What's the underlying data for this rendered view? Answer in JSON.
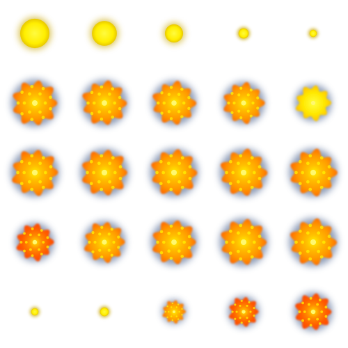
{
  "sprite_sheet": {
    "frames": [
      {
        "id": "r1c1",
        "style": "flash",
        "level": 1.0
      },
      {
        "id": "r1c2",
        "style": "flash",
        "level": 0.85
      },
      {
        "id": "r1c3",
        "style": "flash",
        "level": 0.62
      },
      {
        "id": "r1c4",
        "style": "flash",
        "level": 0.35
      },
      {
        "id": "r1c5",
        "style": "flash",
        "level": 0.25
      },
      {
        "id": "r2c1",
        "style": "burst",
        "level": 0.98
      },
      {
        "id": "r2c2",
        "style": "burst",
        "level": 0.96
      },
      {
        "id": "r2c3",
        "style": "burst",
        "level": 0.93
      },
      {
        "id": "r2c4",
        "style": "burst",
        "level": 0.88
      },
      {
        "id": "r2c5",
        "style": "glow",
        "level": 0.76
      },
      {
        "id": "r3c1",
        "style": "burst",
        "level": 1.0
      },
      {
        "id": "r3c2",
        "style": "burst",
        "level": 1.0
      },
      {
        "id": "r3c3",
        "style": "burst",
        "level": 1.0
      },
      {
        "id": "r3c4",
        "style": "burst",
        "level": 1.0
      },
      {
        "id": "r3c5",
        "style": "burst",
        "level": 1.0
      },
      {
        "id": "r4c1",
        "style": "burst-dark",
        "level": 0.8
      },
      {
        "id": "r4c2",
        "style": "burst",
        "level": 0.88
      },
      {
        "id": "r4c3",
        "style": "burst",
        "level": 0.96
      },
      {
        "id": "r4c4",
        "style": "burst",
        "level": 1.0
      },
      {
        "id": "r4c5",
        "style": "burst",
        "level": 1.0
      },
      {
        "id": "r5c1",
        "style": "flash",
        "level": 0.25
      },
      {
        "id": "r5c2",
        "style": "flash",
        "level": 0.3
      },
      {
        "id": "r5c3",
        "style": "burst",
        "level": 0.5
      },
      {
        "id": "r5c4",
        "style": "burst-dark",
        "level": 0.65
      },
      {
        "id": "r5c5",
        "style": "burst-dark",
        "level": 0.8
      }
    ],
    "colors": {
      "core": "#fff200",
      "mid": "#ffb000",
      "outer": "#ff8000",
      "edge": "#ff4f00",
      "halo": "#6b7ea3",
      "flash_halo": "#c7a500"
    }
  }
}
